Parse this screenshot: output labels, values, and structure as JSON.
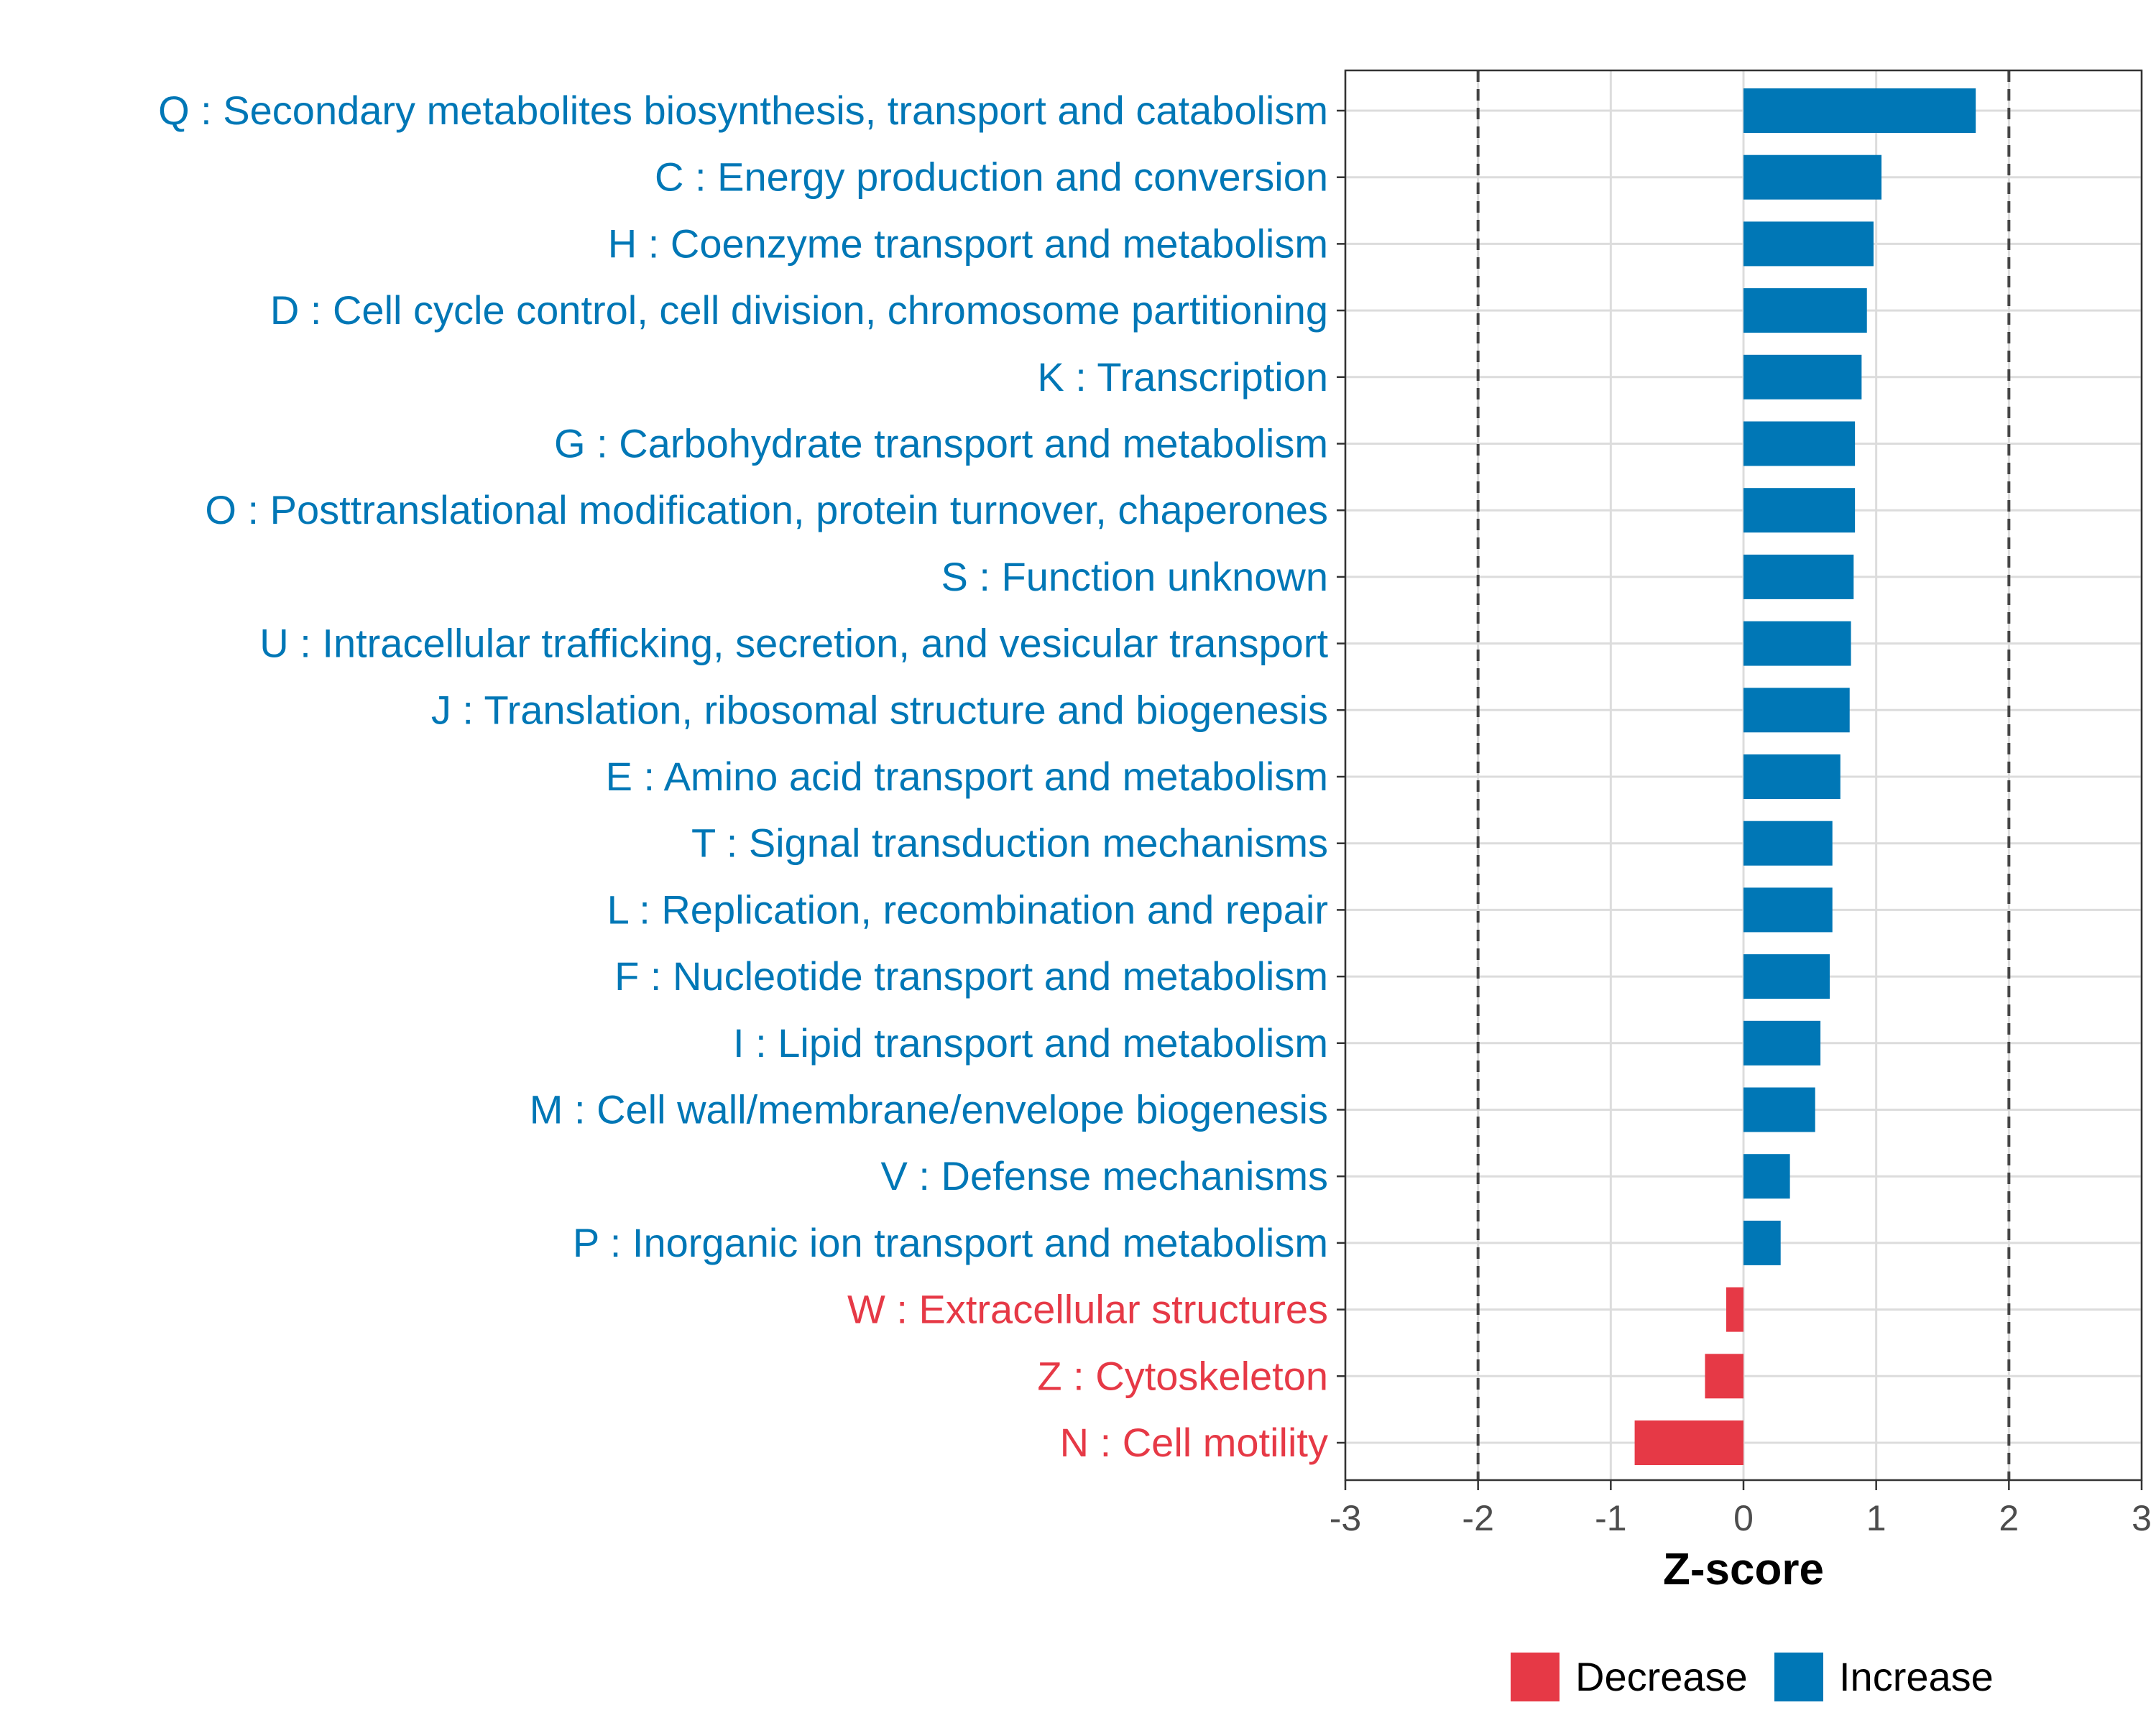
{
  "chart_data": {
    "type": "bar",
    "orientation": "horizontal",
    "xlabel": "Z-score",
    "ylabel": "",
    "xlim": [
      -3,
      3
    ],
    "xticks": [
      "-3",
      "-2",
      "-1",
      "0",
      "1",
      "2",
      "3"
    ],
    "reference_lines": [
      -2,
      2
    ],
    "grid": true,
    "legend_position": "bottom",
    "legend": [
      {
        "label": "Decrease",
        "color": "#e63946"
      },
      {
        "label": "Increase",
        "color": "#0077b6"
      }
    ],
    "colors": {
      "increase": "#0077b6",
      "decrease": "#e63946"
    },
    "categories": [
      "Q : Secondary metabolites biosynthesis, transport and catabolism",
      "C : Energy production and conversion",
      "H : Coenzyme transport and metabolism",
      "D : Cell cycle control, cell division, chromosome partitioning",
      "K : Transcription",
      "G : Carbohydrate transport and metabolism",
      "O : Posttranslational modification, protein turnover, chaperones",
      "S : Function unknown",
      "U : Intracellular trafficking, secretion, and vesicular transport",
      "J : Translation, ribosomal structure and biogenesis",
      "E : Amino acid transport and metabolism",
      "T : Signal transduction mechanisms",
      "L : Replication, recombination and repair",
      "F : Nucleotide transport and metabolism",
      "I : Lipid transport and metabolism",
      "M : Cell wall/membrane/envelope biogenesis",
      "V : Defense mechanisms",
      "P : Inorganic ion transport and metabolism",
      "W : Extracellular structures",
      "Z : Cytoskeleton",
      "N : Cell motility"
    ],
    "values": [
      1.75,
      1.04,
      0.98,
      0.93,
      0.89,
      0.84,
      0.84,
      0.83,
      0.81,
      0.8,
      0.73,
      0.67,
      0.67,
      0.65,
      0.58,
      0.54,
      0.35,
      0.28,
      -0.13,
      -0.29,
      -0.82
    ]
  }
}
